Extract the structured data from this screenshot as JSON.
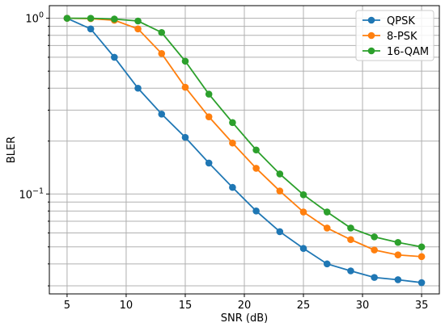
{
  "chart_data": {
    "type": "line",
    "title": "",
    "xlabel": "SNR (dB)",
    "ylabel": "BLER",
    "yscale": "log",
    "xlim": [
      3.5,
      36.5
    ],
    "ylim": [
      0.027,
      1.18
    ],
    "x_ticks": [
      5,
      10,
      15,
      20,
      25,
      30,
      35
    ],
    "y_ticks": [
      {
        "value": 1.0,
        "label": "10",
        "exp": "0"
      },
      {
        "value": 0.1,
        "label": "10",
        "exp": "−1"
      }
    ],
    "grid": true,
    "legend_position": "top-right",
    "x": [
      5,
      7,
      9,
      11,
      13,
      15,
      17,
      19,
      21,
      23,
      25,
      27,
      29,
      31,
      33,
      35
    ],
    "series": [
      {
        "name": "QPSK",
        "color": "#1f77b4",
        "values": [
          1.0,
          0.87,
          0.6,
          0.4,
          0.285,
          0.21,
          0.15,
          0.109,
          0.08,
          0.061,
          0.049,
          0.04,
          0.0365,
          0.0335,
          0.0325,
          0.0313
        ]
      },
      {
        "name": "8-PSK",
        "color": "#ff7f0e",
        "values": [
          1.0,
          0.995,
          0.975,
          0.87,
          0.63,
          0.405,
          0.275,
          0.195,
          0.14,
          0.104,
          0.079,
          0.064,
          0.055,
          0.048,
          0.045,
          0.044
        ]
      },
      {
        "name": "16-QAM",
        "color": "#2ca02c",
        "values": [
          1.0,
          1.0,
          0.99,
          0.965,
          0.83,
          0.57,
          0.37,
          0.255,
          0.178,
          0.13,
          0.099,
          0.079,
          0.064,
          0.057,
          0.053,
          0.05
        ]
      }
    ]
  }
}
